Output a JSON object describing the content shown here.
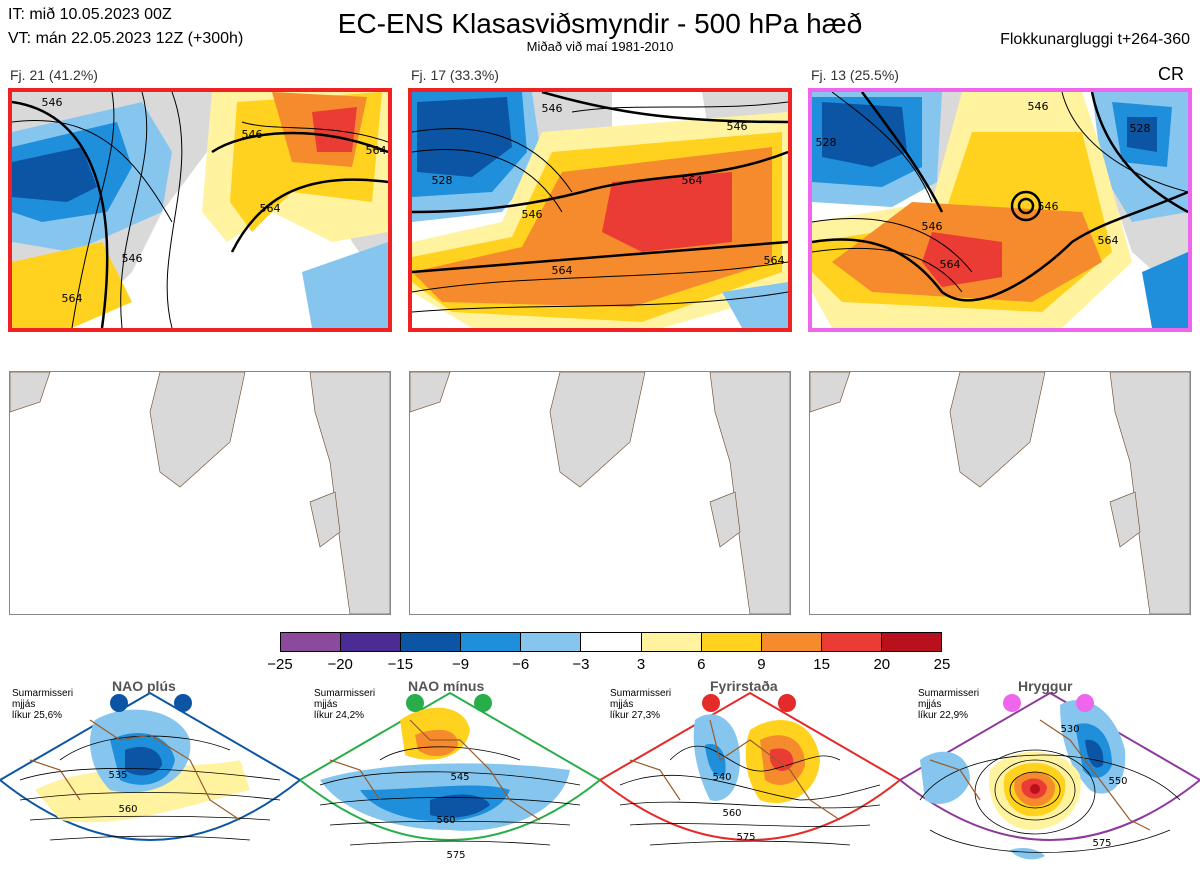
{
  "header": {
    "it": "IT: mið 10.05.2023 00Z",
    "vt": "VT: mán 22.05.2023 12Z  (+300h)",
    "title": "EC-ENS Klasasviðsmyndir - 500 hPa hæð",
    "subtitle": "Miðað við maí 1981-2010",
    "window": "Flokkunargluggi t+264-360"
  },
  "clusters": [
    {
      "label": "Fj. 21 (41.2%)",
      "frame_color": "#ee2222",
      "contours": [
        "546",
        "564",
        "546",
        "564",
        "546",
        "564"
      ]
    },
    {
      "label": "Fj. 17 (33.3%)",
      "frame_color": "#ee2222",
      "contours": [
        "546",
        "546",
        "528",
        "546",
        "564",
        "564",
        "564"
      ]
    },
    {
      "label": "Fj. 13 (25.5%)",
      "frame_color": "#ee66ee",
      "regime_tag": "CR",
      "contours": [
        "528",
        "546",
        "528",
        "546",
        "546",
        "564",
        "564"
      ]
    }
  ],
  "colorbar": {
    "ticks": [
      "−25",
      "−20",
      "−15",
      "−9",
      "−6",
      "−3",
      "3",
      "6",
      "9",
      "15",
      "20",
      "25"
    ],
    "colors": [
      "#8c4a9c",
      "#4a2c94",
      "#0b55a4",
      "#1f8fdb",
      "#86c6ee",
      "#ffffff",
      "#fff3a0",
      "#ffd21f",
      "#f58b2c",
      "#ea3b34",
      "#b8101c"
    ]
  },
  "regimes": [
    {
      "name": "NAO plús",
      "note_lines": [
        "Sumarmisseri",
        "mjjás",
        "líkur 25,6%"
      ],
      "color": "#0b55a4",
      "contours": [
        "535",
        "560"
      ]
    },
    {
      "name": "NAO mínus",
      "note_lines": [
        "Sumarmisseri",
        "mjjás",
        "líkur 24,2%"
      ],
      "color": "#27ae4a",
      "contours": [
        "545",
        "560",
        "575"
      ]
    },
    {
      "name": "Fyrirstaða",
      "note_lines": [
        "Sumarmisseri",
        "mjjás",
        "líkur 27,3%"
      ],
      "color": "#e52a2a",
      "contours": [
        "540",
        "560",
        "575"
      ]
    },
    {
      "name": "Hryggur",
      "note_lines": [
        "Sumarmisseri",
        "mjjás",
        "líkur 22,9%"
      ],
      "color": "#ee66ee",
      "contours": [
        "530",
        "550",
        "575"
      ]
    }
  ]
}
